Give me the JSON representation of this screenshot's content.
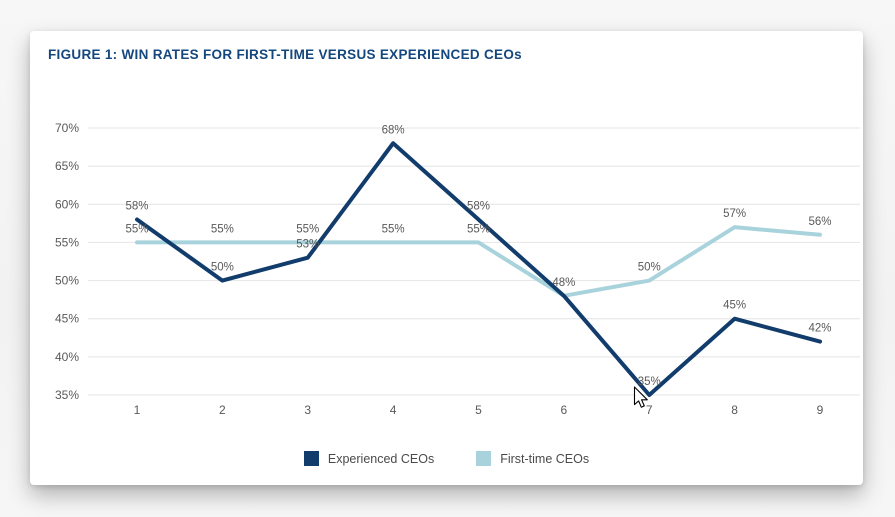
{
  "figure": {
    "title": "FIGURE 1: WIN RATES FOR FIRST-TIME VERSUS EXPERIENCED CEOs"
  },
  "chart_data": {
    "type": "line",
    "title": "FIGURE 1: WIN RATES FOR FIRST-TIME VERSUS EXPERIENCED CEOs",
    "x_ticks": [
      "1",
      "2",
      "3",
      "4",
      "5",
      "6",
      "7",
      "8",
      "9"
    ],
    "series": [
      {
        "name": "Experienced CEOs",
        "color": "#113c6b",
        "values": [
          58,
          50,
          53,
          68,
          58,
          48,
          35,
          45,
          42
        ]
      },
      {
        "name": "First-time CEOs",
        "color": "#a9d3dc",
        "values": [
          55,
          55,
          55,
          55,
          55,
          48,
          50,
          57,
          56
        ]
      }
    ],
    "ylim": [
      35,
      70
    ],
    "y_tick_step": 5,
    "y_tick_suffix": "%",
    "y_tick_labels": [
      "35%",
      "40%",
      "45%",
      "50%",
      "55%",
      "60%",
      "65%",
      "70%"
    ],
    "grid": "horizontal-only",
    "gridline_color": "#e4e4e4",
    "legend_position": "bottom",
    "data_labels": "percent-above-points",
    "data_label_color": "#595959",
    "axis_text_color": "#595959"
  },
  "cursor": {
    "icon": "arrow-pointer"
  }
}
